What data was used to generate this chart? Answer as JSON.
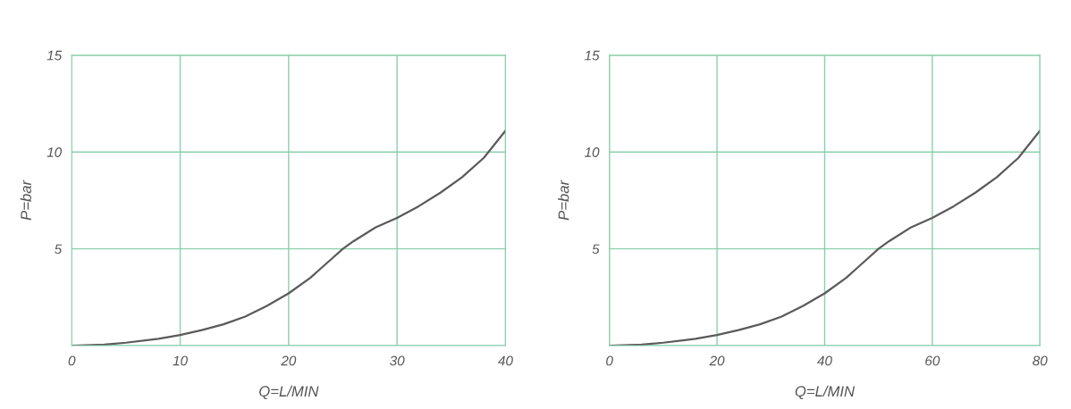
{
  "chart_data": [
    {
      "type": "line",
      "xlabel": "Q=L/MIN",
      "ylabel": "P=bar",
      "x": [
        0,
        3,
        5,
        8,
        10,
        12,
        14,
        16,
        18,
        20,
        22,
        23,
        24,
        25,
        26,
        28,
        30,
        32,
        34,
        36,
        38,
        40
      ],
      "series": [
        {
          "color": "#5a5a5a",
          "values": [
            0,
            0.05,
            0.15,
            0.35,
            0.55,
            0.8,
            1.1,
            1.5,
            2.05,
            2.7,
            3.5,
            4.0,
            4.5,
            5.0,
            5.4,
            6.1,
            6.6,
            7.2,
            7.9,
            8.7,
            9.7,
            11.1
          ]
        }
      ],
      "xlim": [
        0,
        40
      ],
      "ylim": [
        0,
        15
      ],
      "xticks": [
        0,
        10,
        20,
        30,
        40
      ],
      "yticks": [
        {
          "value": 0,
          "label": null
        },
        5,
        10,
        15
      ],
      "grid": true,
      "legend": false,
      "marker": "none",
      "line_style": "solid"
    },
    {
      "type": "line",
      "xlabel": "Q=L/MIN",
      "ylabel": "P=bar",
      "x": [
        0,
        6,
        10,
        16,
        20,
        24,
        28,
        32,
        36,
        40,
        44,
        46,
        48,
        50,
        52,
        56,
        60,
        64,
        68,
        72,
        76,
        80
      ],
      "series": [
        {
          "color": "#5a5a5a",
          "values": [
            0,
            0.05,
            0.15,
            0.35,
            0.55,
            0.8,
            1.1,
            1.5,
            2.05,
            2.7,
            3.5,
            4.0,
            4.5,
            5.0,
            5.4,
            6.1,
            6.6,
            7.2,
            7.9,
            8.7,
            9.7,
            11.1
          ]
        }
      ],
      "xlim": [
        0,
        80
      ],
      "ylim": [
        0,
        15
      ],
      "xticks": [
        0,
        20,
        40,
        60,
        80
      ],
      "yticks": [
        {
          "value": 0,
          "label": null
        },
        5,
        10,
        15
      ],
      "grid": true,
      "legend": false,
      "marker": "none",
      "line_style": "solid"
    }
  ]
}
